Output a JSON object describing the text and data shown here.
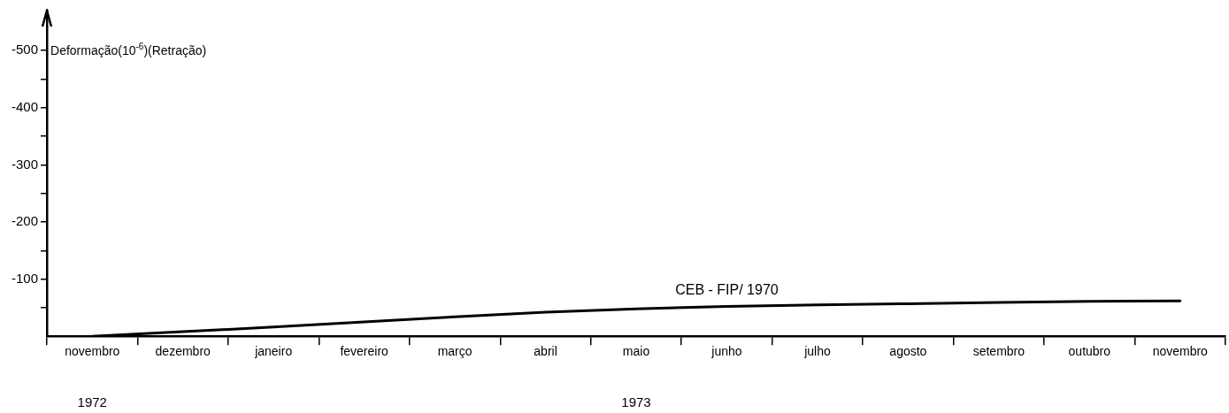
{
  "chart_data": {
    "type": "line",
    "ylabel": "Deformação(10$^{-6}$)(Retração)",
    "categories": [
      "novembro",
      "dezembro",
      "janeiro",
      "fevereiro",
      "março",
      "abril",
      "maio",
      "junho",
      "julho",
      "agosto",
      "setembro",
      "outubro",
      "novembro"
    ],
    "series": [
      {
        "name": "CEB - FIP/ 1970",
        "color": "#000000",
        "values": [
          0,
          -8,
          -16,
          -25,
          -34,
          -42,
          -48,
          -52,
          -55,
          -57,
          -59,
          -61,
          -62
        ]
      }
    ],
    "ylim": [
      0,
      -570
    ],
    "yticks": [
      {
        "value": -50,
        "label": null
      },
      -100,
      {
        "value": -150,
        "label": null
      },
      -200,
      {
        "value": -250,
        "label": null
      },
      -300,
      {
        "value": -350,
        "label": null
      },
      -400,
      {
        "value": -450,
        "label": null
      },
      -500
    ],
    "annotations": [
      "1972",
      "1973"
    ],
    "grid": false,
    "legend": false,
    "marker": "none",
    "line_style": "solid"
  }
}
